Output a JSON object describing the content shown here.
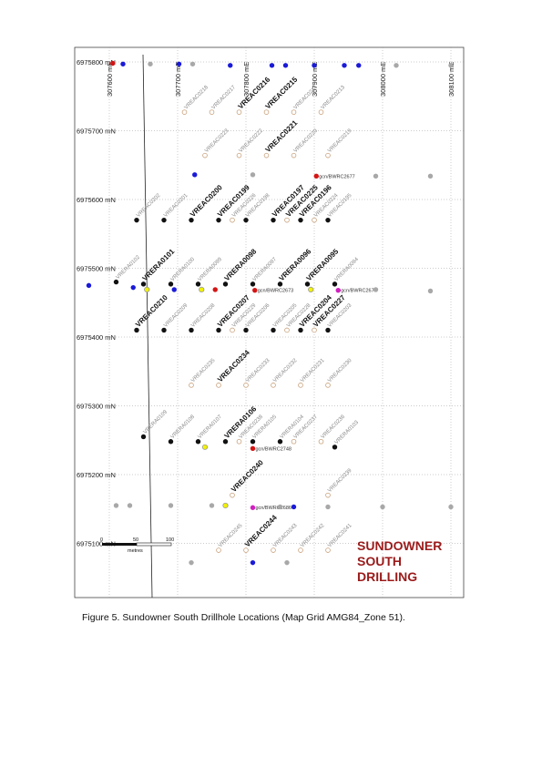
{
  "caption": "Figure 5. Sundowner South Drillhole Locations (Map Grid AMG84_Zone 51).",
  "title_lines": [
    "SUNDOWNER",
    "SOUTH",
    "DRILLING"
  ],
  "colors": {
    "title": "#9b1b1b",
    "black": "#111111",
    "blue": "#1a1ad8",
    "grey": "#a8a8a8",
    "red": "#d41414",
    "yellow": "#f2f200",
    "magenta": "#d020c0",
    "planned": "#c8a07a"
  },
  "northings": [
    {
      "v": 6975800,
      "label": "6975800 mN"
    },
    {
      "v": 6975700,
      "label": "6975700 mN"
    },
    {
      "v": 6975600,
      "label": "6975600 mN"
    },
    {
      "v": 6975500,
      "label": "6975500 mN"
    },
    {
      "v": 6975400,
      "label": "6975400 mN"
    },
    {
      "v": 6975300,
      "label": "6975300 mN"
    },
    {
      "v": 6975200,
      "label": "6975200 mN"
    },
    {
      "v": 6975100,
      "label": "6975100 mN"
    }
  ],
  "eastings": [
    {
      "v": 307600,
      "label": "307600 mE"
    },
    {
      "v": 307700,
      "label": "307700 mE"
    },
    {
      "v": 307800,
      "label": "307800 mE"
    },
    {
      "v": 307900,
      "label": "307900 mE"
    },
    {
      "v": 308000,
      "label": "308000 mE"
    },
    {
      "v": 308100,
      "label": "308100 mE"
    }
  ],
  "scalebar": {
    "ticks": [
      "0",
      "50",
      "100"
    ],
    "unit": "metres"
  },
  "holes": [
    {
      "e": 307605,
      "n": 6975798,
      "c": "red"
    },
    {
      "e": 307620,
      "n": 6975797,
      "c": "blue"
    },
    {
      "e": 307660,
      "n": 6975797,
      "c": "grey"
    },
    {
      "e": 307702,
      "n": 6975797,
      "c": "blue"
    },
    {
      "e": 307722,
      "n": 6975797,
      "c": "grey"
    },
    {
      "e": 307777,
      "n": 6975795,
      "c": "blue"
    },
    {
      "e": 307838,
      "n": 6975795,
      "c": "blue"
    },
    {
      "e": 307858,
      "n": 6975795,
      "c": "blue"
    },
    {
      "e": 307900,
      "n": 6975795,
      "c": "blue"
    },
    {
      "e": 307944,
      "n": 6975795,
      "c": "blue"
    },
    {
      "e": 307965,
      "n": 6975795,
      "c": "blue"
    },
    {
      "e": 308020,
      "n": 6975795,
      "c": "grey"
    },
    {
      "e": 308100,
      "n": 6975795,
      "c": "grey"
    },
    {
      "e": 307710,
      "n": 6975727,
      "c": "planned",
      "label": "VREAC0218",
      "bold": false
    },
    {
      "e": 307750,
      "n": 6975727,
      "c": "planned",
      "label": "VREAC0217",
      "bold": false
    },
    {
      "e": 307790,
      "n": 6975727,
      "c": "planned",
      "label": "VREAC0216",
      "bold": true
    },
    {
      "e": 307830,
      "n": 6975727,
      "c": "planned",
      "label": "VREAC0215",
      "bold": true
    },
    {
      "e": 307870,
      "n": 6975727,
      "c": "planned",
      "label": "VREAC0214",
      "bold": false
    },
    {
      "e": 307910,
      "n": 6975727,
      "c": "planned",
      "label": "VREAC0213",
      "bold": false
    },
    {
      "e": 307740,
      "n": 6975664,
      "c": "planned",
      "label": "VREAC0223",
      "bold": false
    },
    {
      "e": 307790,
      "n": 6975664,
      "c": "planned",
      "label": "VREAC0222",
      "bold": false
    },
    {
      "e": 307830,
      "n": 6975664,
      "c": "planned",
      "label": "VREAC0221",
      "bold": true
    },
    {
      "e": 307870,
      "n": 6975664,
      "c": "planned",
      "label": "VREAC0220",
      "bold": false
    },
    {
      "e": 307920,
      "n": 6975664,
      "c": "planned",
      "label": "VREAC0219",
      "bold": false
    },
    {
      "e": 307725,
      "n": 6975636,
      "c": "blue"
    },
    {
      "e": 307810,
      "n": 6975636,
      "c": "grey"
    },
    {
      "e": 307903,
      "n": 6975634,
      "c": "red",
      "plabel": "gcn/BWRC2677"
    },
    {
      "e": 307990,
      "n": 6975634,
      "c": "grey"
    },
    {
      "e": 308070,
      "n": 6975634,
      "c": "grey"
    },
    {
      "e": 307640,
      "n": 6975570,
      "c": "black",
      "label": "VREAC0202",
      "bold": false
    },
    {
      "e": 307680,
      "n": 6975570,
      "c": "black",
      "label": "VREAC0201",
      "bold": false
    },
    {
      "e": 307720,
      "n": 6975570,
      "c": "black",
      "label": "VREAC0200",
      "bold": true
    },
    {
      "e": 307760,
      "n": 6975570,
      "c": "black",
      "label": "VREAC0199",
      "bold": true
    },
    {
      "e": 307780,
      "n": 6975570,
      "c": "planned",
      "label": "VREAC0226",
      "bold": false
    },
    {
      "e": 307800,
      "n": 6975570,
      "c": "black",
      "label": "VREAC0198",
      "bold": false
    },
    {
      "e": 307840,
      "n": 6975570,
      "c": "black",
      "label": "VREAC0197",
      "bold": true
    },
    {
      "e": 307860,
      "n": 6975570,
      "c": "planned",
      "label": "VREAC0225",
      "bold": true
    },
    {
      "e": 307880,
      "n": 6975570,
      "c": "black",
      "label": "VREAC0196",
      "bold": true
    },
    {
      "e": 307900,
      "n": 6975570,
      "c": "planned",
      "label": "VREAC0224",
      "bold": false
    },
    {
      "e": 307920,
      "n": 6975570,
      "c": "black",
      "label": "VREAC0195",
      "bold": false
    },
    {
      "e": 307570,
      "n": 6975475,
      "c": "blue"
    },
    {
      "e": 307610,
      "n": 6975480,
      "c": "black",
      "label": "VRERA0102",
      "bold": false
    },
    {
      "e": 307635,
      "n": 6975472,
      "c": "blue"
    },
    {
      "e": 307650,
      "n": 6975477,
      "c": "black",
      "label": "VRERA0101",
      "bold": true
    },
    {
      "e": 307655,
      "n": 6975469,
      "c": "yellow"
    },
    {
      "e": 307690,
      "n": 6975477,
      "c": "black",
      "label": "VRERA0100",
      "bold": false
    },
    {
      "e": 307695,
      "n": 6975469,
      "c": "blue"
    },
    {
      "e": 307730,
      "n": 6975477,
      "c": "black",
      "label": "VRERA0099",
      "bold": false
    },
    {
      "e": 307735,
      "n": 6975469,
      "c": "yellow"
    },
    {
      "e": 307755,
      "n": 6975469,
      "c": "red"
    },
    {
      "e": 307770,
      "n": 6975477,
      "c": "black",
      "label": "VRERA0098",
      "bold": true
    },
    {
      "e": 307810,
      "n": 6975477,
      "c": "black",
      "label": "VRERA0097",
      "bold": false
    },
    {
      "e": 307813,
      "n": 6975468,
      "c": "red",
      "plabel": "gcn/BWRC2673"
    },
    {
      "e": 307850,
      "n": 6975477,
      "c": "black",
      "label": "VRERA0096",
      "bold": true
    },
    {
      "e": 307890,
      "n": 6975477,
      "c": "black",
      "label": "VRERA0095",
      "bold": true
    },
    {
      "e": 307895,
      "n": 6975469,
      "c": "yellow"
    },
    {
      "e": 307930,
      "n": 6975477,
      "c": "black",
      "label": "VRERA0094",
      "bold": false
    },
    {
      "e": 307935,
      "n": 6975468,
      "c": "magenta",
      "plabel": "gcn/BWRC2675"
    },
    {
      "e": 307990,
      "n": 6975469,
      "c": "grey"
    },
    {
      "e": 308070,
      "n": 6975467,
      "c": "grey"
    },
    {
      "e": 307640,
      "n": 6975410,
      "c": "black",
      "label": "VREAC0210",
      "bold": true
    },
    {
      "e": 307680,
      "n": 6975410,
      "c": "black",
      "label": "VREAC0209",
      "bold": false
    },
    {
      "e": 307720,
      "n": 6975410,
      "c": "black",
      "label": "VREAC0208",
      "bold": false
    },
    {
      "e": 307760,
      "n": 6975410,
      "c": "black",
      "label": "VREAC0207",
      "bold": true
    },
    {
      "e": 307780,
      "n": 6975410,
      "c": "planned",
      "label": "VREAC0229",
      "bold": false
    },
    {
      "e": 307800,
      "n": 6975410,
      "c": "black",
      "label": "VREAC0206",
      "bold": false
    },
    {
      "e": 307840,
      "n": 6975410,
      "c": "black",
      "label": "VREAC0205",
      "bold": false
    },
    {
      "e": 307860,
      "n": 6975410,
      "c": "planned",
      "label": "VREAC0228",
      "bold": false
    },
    {
      "e": 307880,
      "n": 6975410,
      "c": "black",
      "label": "VREAC0204",
      "bold": true
    },
    {
      "e": 307900,
      "n": 6975410,
      "c": "planned",
      "label": "VREAC0227",
      "bold": true
    },
    {
      "e": 307920,
      "n": 6975410,
      "c": "black",
      "label": "VREAC0203",
      "bold": false
    },
    {
      "e": 307720,
      "n": 6975330,
      "c": "planned",
      "label": "VREAC0235",
      "bold": false
    },
    {
      "e": 307760,
      "n": 6975330,
      "c": "planned",
      "label": "VREAC0234",
      "bold": true
    },
    {
      "e": 307800,
      "n": 6975330,
      "c": "planned",
      "label": "VREAC0233",
      "bold": false
    },
    {
      "e": 307840,
      "n": 6975330,
      "c": "planned",
      "label": "VREAC0232",
      "bold": false
    },
    {
      "e": 307880,
      "n": 6975330,
      "c": "planned",
      "label": "VREAC0231",
      "bold": false
    },
    {
      "e": 307920,
      "n": 6975330,
      "c": "planned",
      "label": "VREAC0230",
      "bold": false
    },
    {
      "e": 307650,
      "n": 6975255,
      "c": "black",
      "label": "VRERA0109",
      "bold": false
    },
    {
      "e": 307690,
      "n": 6975248,
      "c": "black",
      "label": "VRERA0108",
      "bold": false
    },
    {
      "e": 307730,
      "n": 6975248,
      "c": "black",
      "label": "VRERA0107",
      "bold": false
    },
    {
      "e": 307740,
      "n": 6975240,
      "c": "yellow"
    },
    {
      "e": 307770,
      "n": 6975248,
      "c": "black",
      "label": "VRERA0106",
      "bold": true
    },
    {
      "e": 307790,
      "n": 6975248,
      "c": "planned",
      "label": "VREAC0238",
      "bold": false
    },
    {
      "e": 307810,
      "n": 6975248,
      "c": "black",
      "label": "VRERA0105",
      "bold": false
    },
    {
      "e": 307810,
      "n": 6975238,
      "c": "red",
      "plabel": "gcn/BWRC2748"
    },
    {
      "e": 307850,
      "n": 6975248,
      "c": "black",
      "label": "VRERA0104",
      "bold": false
    },
    {
      "e": 307870,
      "n": 6975248,
      "c": "planned",
      "label": "VREAC0237",
      "bold": false
    },
    {
      "e": 307910,
      "n": 6975248,
      "c": "planned",
      "label": "VREAC0236",
      "bold": false
    },
    {
      "e": 307930,
      "n": 6975240,
      "c": "black",
      "label": "VRERA0103",
      "bold": false
    },
    {
      "e": 307780,
      "n": 6975170,
      "c": "planned",
      "label": "VREAC0240",
      "bold": true
    },
    {
      "e": 307920,
      "n": 6975170,
      "c": "planned",
      "label": "VREAC0239",
      "bold": false
    },
    {
      "e": 307610,
      "n": 6975155,
      "c": "grey"
    },
    {
      "e": 307630,
      "n": 6975155,
      "c": "grey"
    },
    {
      "e": 307690,
      "n": 6975155,
      "c": "grey"
    },
    {
      "e": 307750,
      "n": 6975155,
      "c": "grey"
    },
    {
      "e": 307770,
      "n": 6975155,
      "c": "yellow"
    },
    {
      "e": 307810,
      "n": 6975152,
      "c": "magenta",
      "plabel": "gcn/BWRC2686"
    },
    {
      "e": 307850,
      "n": 6975153,
      "c": "grey"
    },
    {
      "e": 307870,
      "n": 6975153,
      "c": "blue"
    },
    {
      "e": 307920,
      "n": 6975153,
      "c": "grey"
    },
    {
      "e": 308000,
      "n": 6975153,
      "c": "grey"
    },
    {
      "e": 308100,
      "n": 6975153,
      "c": "grey"
    },
    {
      "e": 307760,
      "n": 6975090,
      "c": "planned",
      "label": "VREAC0245",
      "bold": false
    },
    {
      "e": 307800,
      "n": 6975090,
      "c": "planned",
      "label": "VREAC0244",
      "bold": true
    },
    {
      "e": 307840,
      "n": 6975090,
      "c": "planned",
      "label": "VREAC0243",
      "bold": false
    },
    {
      "e": 307880,
      "n": 6975090,
      "c": "planned",
      "label": "VREAC0242",
      "bold": false
    },
    {
      "e": 307920,
      "n": 6975090,
      "c": "planned",
      "label": "VREAC0241",
      "bold": false
    },
    {
      "e": 307720,
      "n": 6975072,
      "c": "grey"
    },
    {
      "e": 307810,
      "n": 6975072,
      "c": "blue"
    },
    {
      "e": 307860,
      "n": 6975072,
      "c": "grey"
    }
  ]
}
